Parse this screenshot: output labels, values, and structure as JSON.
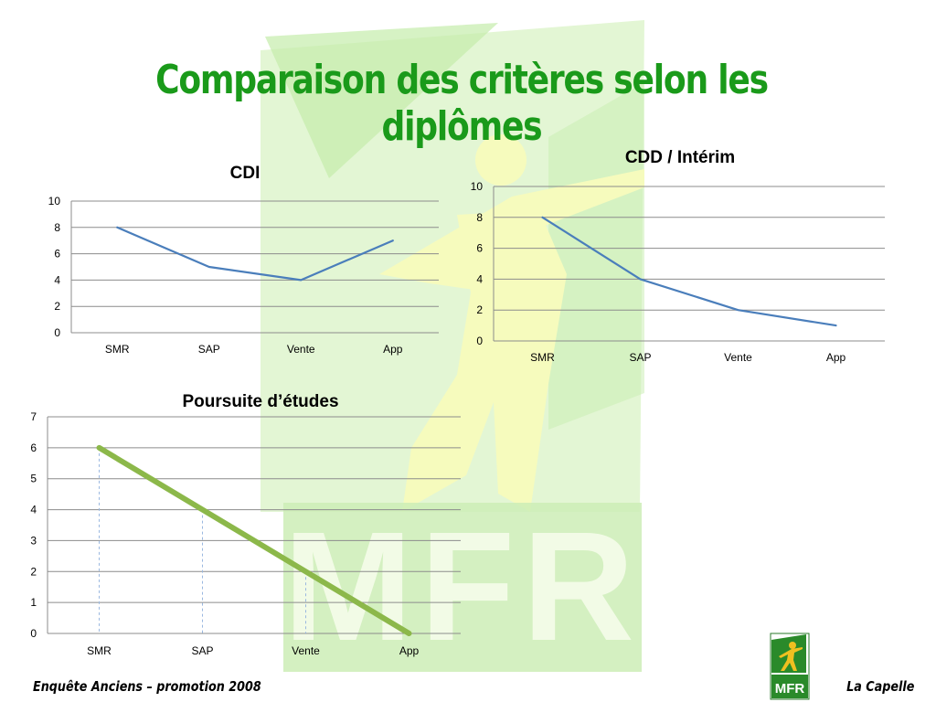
{
  "title": "Comparaison des critères selon les diplômes",
  "footer": {
    "left": "Enquête Anciens – promotion 2008",
    "right": "La Capelle"
  },
  "logo": {
    "text": "MFR"
  },
  "watermark": {
    "text": "MFR"
  },
  "colors": {
    "title": "#1a9a1a",
    "series_blue": "#4a7ebb",
    "series_green": "#8cb84a",
    "watermark_green": "#c8ecb2",
    "watermark_yellow": "#f3f9b8"
  },
  "chart_data": [
    {
      "type": "line",
      "title": "CDI",
      "categories": [
        "SMR",
        "SAP",
        "Vente",
        "App"
      ],
      "values": [
        8,
        5,
        4,
        7
      ],
      "ylim": [
        0,
        10
      ],
      "yticks": [
        0,
        2,
        4,
        6,
        8,
        10
      ],
      "grid": true,
      "legend": "none"
    },
    {
      "type": "line",
      "title": "CDD / Intérim",
      "categories": [
        "SMR",
        "SAP",
        "Vente",
        "App"
      ],
      "values": [
        8,
        4,
        2,
        1
      ],
      "ylim": [
        0,
        10
      ],
      "yticks": [
        0,
        2,
        4,
        6,
        8,
        10
      ],
      "grid": true,
      "legend": "none"
    },
    {
      "type": "line",
      "title": "Poursuite d’études",
      "categories": [
        "SMR",
        "SAP",
        "Vente",
        "App"
      ],
      "values": [
        6,
        4,
        2,
        0
      ],
      "ylim": [
        0,
        7
      ],
      "yticks": [
        0,
        1,
        2,
        3,
        4,
        5,
        6,
        7
      ],
      "grid": true,
      "legend": "none",
      "drop_lines": true
    }
  ]
}
